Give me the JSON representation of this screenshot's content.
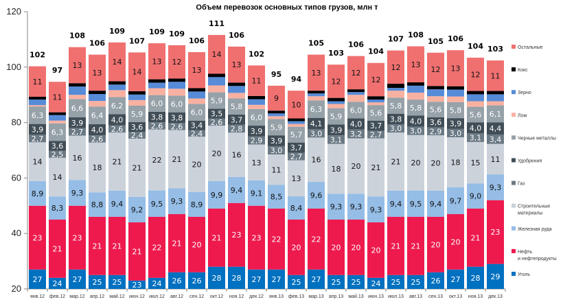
{
  "chart_data": {
    "type": "bar",
    "stacked": true,
    "title": "Объем перевозок основных типов грузов, млн т",
    "xlabel": "",
    "ylabel": "",
    "ylim": [
      20,
      120
    ],
    "yticks": [
      20,
      40,
      60,
      80,
      100,
      120
    ],
    "grid": false,
    "legend_position": "right",
    "categories": [
      "янв.12",
      "фев.12",
      "мар.12",
      "апр.12",
      "май.12",
      "июн.12",
      "июл.12",
      "авг.12",
      "сен.12",
      "окт.12",
      "ноя.12",
      "дек.12",
      "янв.13",
      "фев.13",
      "мар.13",
      "апр.13",
      "май.13",
      "июн.13",
      "июл.13",
      "авг.13",
      "сен.13",
      "окт.13",
      "ноя.13",
      "дек.13"
    ],
    "totals": [
      102,
      97,
      108,
      106,
      109,
      107,
      109,
      109,
      106,
      111,
      106,
      102,
      95,
      94,
      105,
      103,
      106,
      104,
      107,
      108,
      105,
      106,
      104,
      103
    ],
    "series": [
      {
        "name": "Уголь",
        "color": "#0070C0",
        "label_color": "#ffffff",
        "labeled": true,
        "values": [
          27,
          24,
          27,
          25,
          25,
          23,
          24,
          26,
          26,
          28,
          28,
          27,
          27,
          25,
          27,
          25,
          25,
          24,
          25,
          25,
          26,
          27,
          28,
          29
        ],
        "labels": [
          "27",
          "24",
          "27",
          "25",
          "25",
          "23",
          "24",
          "26",
          "26",
          "28",
          "28",
          "27",
          "27",
          "25",
          "27",
          "25",
          "25",
          "24",
          "25",
          "25",
          "26",
          "27",
          "28",
          "29"
        ]
      },
      {
        "name": "Нефть и нефтепродукты",
        "color": "#EE1A4E",
        "label_color": "#ffffff",
        "labeled": true,
        "values": [
          23,
          21,
          23,
          21,
          21,
          21,
          22,
          21,
          20,
          21,
          23,
          23,
          22,
          20,
          22,
          20,
          20,
          20,
          21,
          21,
          20,
          20,
          21,
          23
        ],
        "labels": [
          "23",
          "21",
          "23",
          "21",
          "21",
          "21",
          "22",
          "21",
          "20",
          "21",
          "23",
          "23",
          "22",
          "20",
          "22",
          "20",
          "20",
          "20",
          "21",
          "21",
          "20",
          "20",
          "21",
          "23"
        ]
      },
      {
        "name": "Железная руда",
        "color": "#95BDE6",
        "label_color": "#111111",
        "labeled": true,
        "values": [
          8.9,
          8.3,
          9.3,
          8.8,
          9.4,
          9.2,
          9.5,
          9.3,
          8.9,
          9.9,
          9.4,
          9.1,
          8.5,
          8.4,
          9.6,
          9.3,
          9.3,
          9.3,
          9.4,
          9.5,
          9.4,
          9.7,
          9.0,
          9.3
        ],
        "labels": [
          "8,9",
          "8,3",
          "9,3",
          "8,8",
          "9,4",
          "9,2",
          "9,5",
          "9,3",
          "8,9",
          "9,9",
          "9,4",
          "9,1",
          "8,5",
          "8,4",
          "9,6",
          "9,3",
          "9,3",
          "9,3",
          "9,4",
          "9,5",
          "9,4",
          "9,7",
          "9,0",
          "9,3"
        ]
      },
      {
        "name": "Строительные материалы",
        "color": "#CBD2DA",
        "label_color": "#111111",
        "labeled": true,
        "values": [
          14,
          14,
          16,
          18,
          21,
          21,
          22,
          21,
          20,
          20,
          16,
          13,
          11,
          13,
          16,
          18,
          20,
          21,
          21,
          20,
          20,
          18,
          15,
          11
        ],
        "labels": [
          "14",
          "14",
          "16",
          "18",
          "21",
          "21",
          "22",
          "21",
          "20",
          "20",
          "16",
          "13",
          "11",
          "13",
          "16",
          "18",
          "20",
          "21",
          "21",
          "20",
          "20",
          "18",
          "15",
          "11"
        ]
      },
      {
        "name": "Газ",
        "color": "#6B7A85",
        "label_color": "#ffffff",
        "labeled": true,
        "values": [
          2.7,
          2.5,
          2.7,
          2.6,
          2.6,
          2.4,
          2.6,
          2.6,
          2.4,
          2.6,
          2.8,
          2.9,
          3.0,
          2.7,
          3.0,
          3.1,
          3.2,
          2.7,
          3.0,
          3.0,
          2.9,
          3.0,
          3.1,
          3.4
        ],
        "labels": [
          "2,7",
          "2,5",
          "2,7",
          "2,6",
          "2,6",
          "2,4",
          "2,6",
          "2,6",
          "2,4",
          "2,6",
          "2,8",
          "2,9",
          "3,0",
          "2,7",
          "3,0",
          "3,1",
          "3,2",
          "2,7",
          "3,0",
          "3,0",
          "2,9",
          "3,0",
          "3,1",
          "3,4"
        ]
      },
      {
        "name": "Удобрения",
        "color": "#414E57",
        "label_color": "#ffffff",
        "labeled": true,
        "values": [
          3.9,
          3.6,
          3.9,
          4.0,
          4.0,
          3.6,
          3.8,
          3.8,
          3.4,
          3.5,
          3.7,
          3.9,
          3.9,
          3.7,
          4.1,
          3.9,
          4.0,
          3.7,
          3.8,
          4.0,
          3.6,
          3.9,
          4.0,
          4.4
        ],
        "labels": [
          "3,9",
          "3,6",
          "3,9",
          "4,0",
          "4,0",
          "3,6",
          "3,8",
          "3,8",
          "3,4",
          "3,5",
          "3,7",
          "3,9",
          "3,9",
          "3,7",
          "4,1",
          "3,9",
          "4,0",
          "3,7",
          "3,8",
          "4,0",
          "3,6",
          "3,9",
          "4,0",
          "4,4"
        ]
      },
      {
        "name": "Черные металлы",
        "color": "#96A1A8",
        "label_color": "#ffffff",
        "labeled": true,
        "values": [
          6.3,
          6.3,
          6.6,
          6.4,
          6.2,
          5.9,
          6.0,
          6.0,
          6.0,
          5.9,
          5.8,
          6.0,
          5.9,
          5.7,
          6.3,
          5.9,
          6.0,
          5.6,
          5.8,
          5.8,
          5.6,
          5.8,
          5.6,
          6.1
        ],
        "labels": [
          "6,3",
          "6,3",
          "6,6",
          "6,4",
          "6,2",
          "5,9",
          "6,0",
          "6,0",
          "6,0",
          "5,9",
          "5,8",
          "6,0",
          "5,9",
          "5,7",
          "6,3",
          "5,9",
          "6,0",
          "5,6",
          "5,8",
          "5,8",
          "5,6",
          "5,8",
          "5,6",
          "6,1"
        ]
      },
      {
        "name": "Лом",
        "color": "#F8B1A1",
        "label_color": "#111111",
        "labeled": false,
        "values": [
          0.5,
          1.0,
          1.5,
          2.0,
          2.5,
          2.0,
          2.5,
          2.5,
          2.0,
          2.5,
          2.0,
          1.5,
          1.0,
          1.0,
          1.5,
          1.5,
          2.5,
          1.0,
          2.5,
          2.5,
          2.0,
          2.0,
          2.0,
          1.5
        ]
      },
      {
        "name": "Зерно",
        "color": "#568BD8",
        "label_color": "#ffffff",
        "labeled": false,
        "values": [
          2.0,
          2.0,
          3.0,
          2.5,
          2.0,
          2.0,
          2.0,
          2.5,
          2.5,
          3.0,
          2.5,
          2.0,
          1.0,
          1.0,
          1.0,
          1.0,
          1.0,
          1.0,
          1.0,
          2.5,
          2.5,
          2.5,
          2.5,
          2.5
        ]
      },
      {
        "name": "Кокс",
        "color": "#000000",
        "label_color": "#ffffff",
        "labeled": false,
        "values": [
          1.0,
          1.0,
          1.2,
          1.2,
          1.2,
          1.2,
          1.2,
          1.2,
          1.2,
          1.2,
          1.2,
          1.2,
          1.0,
          1.0,
          1.0,
          1.2,
          1.0,
          1.2,
          1.5,
          1.2,
          1.2,
          1.2,
          1.2,
          1.2
        ]
      },
      {
        "name": "Остальные",
        "color": "#F07070",
        "label_color": "#111111",
        "labeled": true,
        "values": [
          11,
          11,
          13,
          13,
          14,
          14,
          13,
          12,
          13,
          14,
          13,
          11,
          9,
          10,
          13,
          12,
          12,
          12,
          12,
          13,
          12,
          13,
          12,
          11
        ],
        "labels": [
          "11",
          "11",
          "13",
          "13",
          "14",
          "14",
          "13",
          "12",
          "13",
          "14",
          "13",
          "11",
          "9",
          "10",
          "13",
          "12",
          "12",
          "12",
          "12",
          "13",
          "12",
          "13",
          "12",
          "11"
        ]
      }
    ],
    "legend": [
      "Остальные",
      "Кокс",
      "Зерно",
      "Лом",
      "Черные  металлы",
      "Удобрения",
      "Газ",
      "Строительные материалы",
      "Железная  руда",
      "Нефть  и нефтепродукты",
      "Уголь"
    ]
  }
}
